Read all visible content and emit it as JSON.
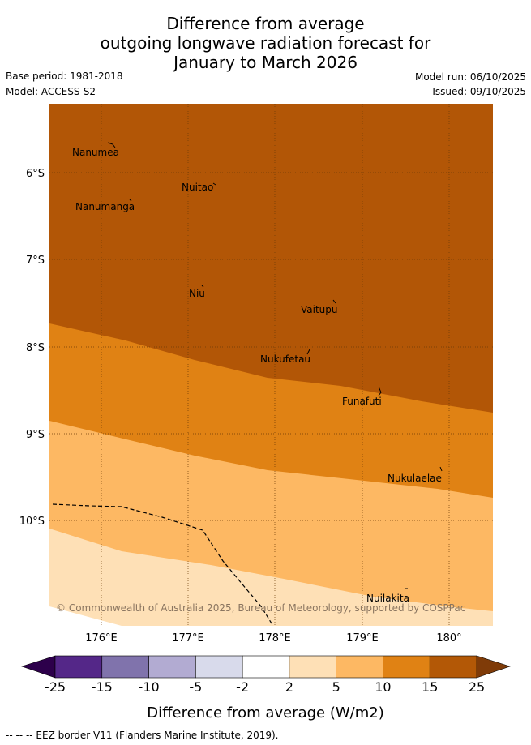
{
  "title_lines": [
    "Difference from average",
    "outgoing longwave radiation forecast for",
    "January to March 2026"
  ],
  "meta": {
    "base_period": "Base period: 1981-2018",
    "model": "Model: ACCESS-S2",
    "model_run": "Model run: 06/10/2025",
    "issued": "Issued: 09/10/2025"
  },
  "map": {
    "lat_ticks": [
      "6°S",
      "7°S",
      "8°S",
      "9°S",
      "10°S"
    ],
    "lon_ticks": [
      "176°E",
      "177°E",
      "178°E",
      "179°E",
      "180°"
    ],
    "places": [
      {
        "name": "Nanumea"
      },
      {
        "name": "Nuitao"
      },
      {
        "name": "Nanumanga"
      },
      {
        "name": "Niu"
      },
      {
        "name": "Vaitupu"
      },
      {
        "name": "Nukufetau"
      },
      {
        "name": "Funafuti"
      },
      {
        "name": "Nukulaelae"
      },
      {
        "name": "Nuilakita"
      }
    ],
    "copyright": "© Commonwealth of Australia 2025, Bureau of Meteorology, supported by COSPPac",
    "colors": {
      "band_25plus": "#b25606",
      "band_10_15": "#e08214",
      "band_5_10": "#fdb863",
      "band_2_5": "#fee0b6",
      "grid": "#6b3a06",
      "eez": "#000000"
    }
  },
  "colorbar": {
    "ticks": [
      "-25",
      "-15",
      "-10",
      "-5",
      "-2",
      "2",
      "5",
      "10",
      "15",
      "25"
    ],
    "colors": [
      "#542788",
      "#8073ac",
      "#b2abd2",
      "#d8daeb",
      "#ffffff",
      "#fee0b6",
      "#fdb863",
      "#e08214",
      "#b35806"
    ],
    "extend_low_color": "#2d004b",
    "extend_high_color": "#7f3b08",
    "label": "Difference from average (W/m2)"
  },
  "footer": "--  --  -- EEZ border V11 (Flanders Marine Institute, 2019)."
}
